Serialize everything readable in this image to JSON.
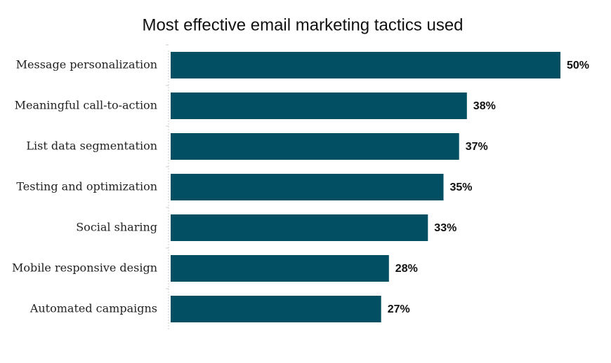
{
  "chart_data": {
    "type": "bar",
    "orientation": "horizontal",
    "title": "Most effective email marketing tactics used",
    "categories": [
      "Message personalization",
      "Meaningful call-to-action",
      "List data segmentation",
      "Testing and optimization",
      "Social sharing",
      "Mobile responsive design",
      "Automated campaigns"
    ],
    "values": [
      50,
      38,
      37,
      35,
      33,
      28,
      27
    ],
    "value_labels": [
      "50%",
      "38%",
      "37%",
      "35%",
      "33%",
      "28%",
      "27%"
    ],
    "color": "#024f63"
  }
}
